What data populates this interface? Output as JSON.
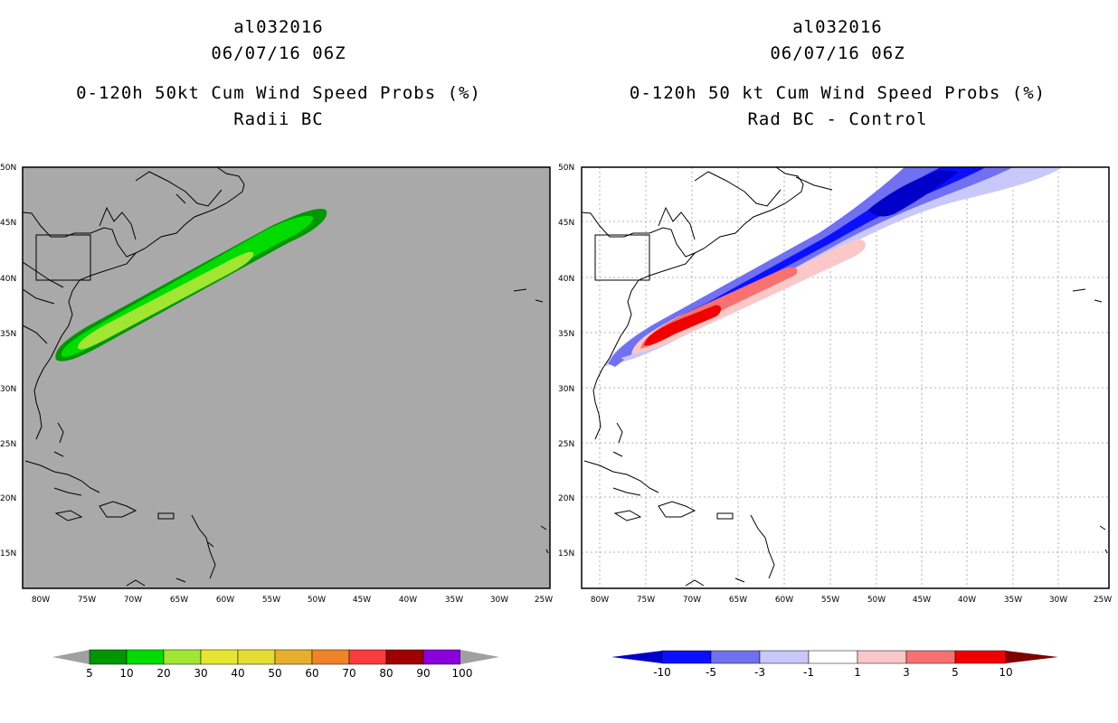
{
  "left_panel": {
    "storm_id": "al032016",
    "datetime": "06/07/16 06Z",
    "title": "0-120h 50kt Cum Wind Speed Probs (%)",
    "subtitle": "Radii BC"
  },
  "right_panel": {
    "storm_id": "al032016",
    "datetime": "06/07/16 06Z",
    "title": "0-120h 50 kt Cum Wind Speed Probs (%)",
    "subtitle": "Rad BC - Control"
  },
  "axes": {
    "lat_labels": [
      "50N",
      "45N",
      "40N",
      "35N",
      "30N",
      "25N",
      "20N",
      "15N"
    ],
    "lon_labels": [
      "80W",
      "75W",
      "70W",
      "65W",
      "60W",
      "55W",
      "50W",
      "45W",
      "40W",
      "35W",
      "30W",
      "25W"
    ]
  },
  "left_colorbar": {
    "labels": [
      "5",
      "10",
      "20",
      "30",
      "40",
      "50",
      "60",
      "70",
      "80",
      "90",
      "100"
    ],
    "colors": [
      "#009600",
      "#00dc00",
      "#a0e632",
      "#e6e632",
      "#e6dc32",
      "#e6af2d",
      "#f08228",
      "#fa3c3c",
      "#a00000",
      "#8c00dc",
      "#a0a0a0"
    ]
  },
  "right_colorbar": {
    "labels": [
      "-10",
      "-5",
      "-3",
      "-1",
      "1",
      "3",
      "5",
      "10"
    ],
    "colors": [
      "#0000c8",
      "#0a10ff",
      "#7070f0",
      "#c8c8fa",
      "#ffffff",
      "#fac8c8",
      "#f87070",
      "#f00000",
      "#800000"
    ]
  },
  "colors": {
    "land_background": "#a9a9a9",
    "green_light": "#a0e632",
    "green_mid": "#00dc00",
    "green_dark": "#009600",
    "blue_dark": "#0a10ff",
    "red": "#f00000"
  }
}
